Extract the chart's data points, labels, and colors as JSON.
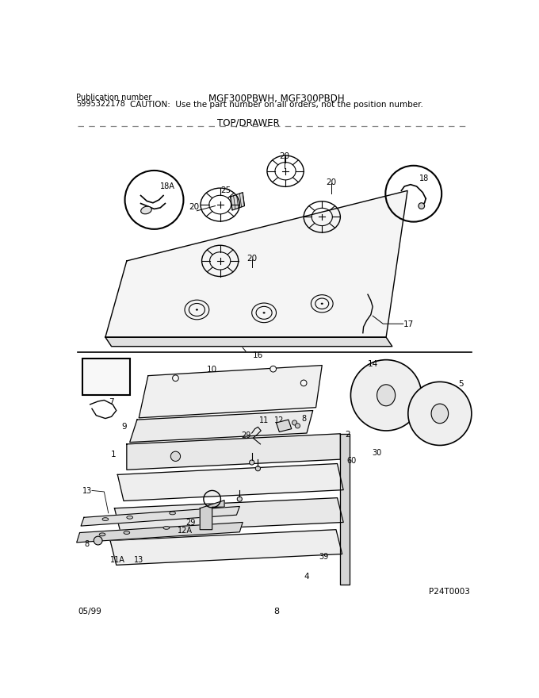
{
  "title_model": "MGF300PBWH, MGF300PBDH",
  "title_caution": "CAUTION:  Use the part number on all orders, not the position number.",
  "pub_label": "Publication number",
  "pub_number": "5995322178",
  "section_top": "TOP/DRAWER",
  "page_number": "8",
  "date": "05/99",
  "part_code": "P24T0003",
  "bg_color": "#ffffff",
  "lc": "#000000",
  "fig_w": 6.8,
  "fig_h": 8.8,
  "dpi": 100
}
